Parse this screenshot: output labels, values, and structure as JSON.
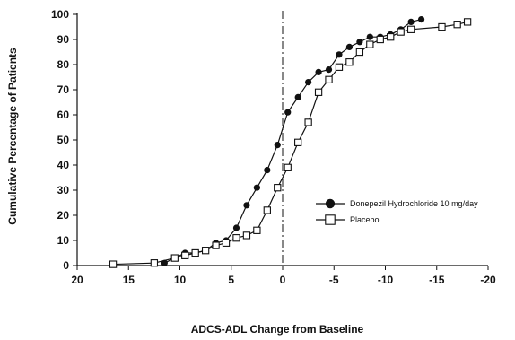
{
  "chart_data": {
    "type": "line",
    "title": "",
    "xlabel": "ADCS-ADL Change from Baseline",
    "ylabel": "Cumulative Percentage of Patients",
    "xlim": [
      20,
      -20
    ],
    "ylim": [
      0,
      100
    ],
    "x_ticks": [
      "20",
      "15",
      "10",
      "5",
      "0",
      "-5",
      "-10",
      "-15",
      "-20"
    ],
    "y_ticks": [
      "0",
      "10",
      "20",
      "30",
      "40",
      "50",
      "60",
      "70",
      "80",
      "90",
      "100"
    ],
    "reference_line": {
      "x": 0,
      "style": "dash-dot"
    },
    "grid": false,
    "legend_position": "right",
    "series": [
      {
        "name": "Donepezil Hydrochloride 10 mg/day",
        "marker": "filled-circle",
        "color": "#111111",
        "points": [
          [
            11.5,
            1
          ],
          [
            10.5,
            3
          ],
          [
            9.5,
            5
          ],
          [
            8.5,
            5
          ],
          [
            7.5,
            6
          ],
          [
            6.5,
            9
          ],
          [
            5.5,
            10
          ],
          [
            4.5,
            15
          ],
          [
            3.5,
            24
          ],
          [
            2.5,
            31
          ],
          [
            1.5,
            38
          ],
          [
            0.5,
            48
          ],
          [
            -0.5,
            61
          ],
          [
            -1.5,
            67
          ],
          [
            -2.5,
            73
          ],
          [
            -3.5,
            77
          ],
          [
            -4.5,
            78
          ],
          [
            -5.5,
            84
          ],
          [
            -6.5,
            87
          ],
          [
            -7.5,
            89
          ],
          [
            -8.5,
            91
          ],
          [
            -9.5,
            91
          ],
          [
            -10.5,
            92
          ],
          [
            -11.5,
            94
          ],
          [
            -12.5,
            97
          ],
          [
            -13.5,
            98
          ]
        ]
      },
      {
        "name": "Placebo",
        "marker": "open-square",
        "color": "#111111",
        "points": [
          [
            16.5,
            0.5
          ],
          [
            12.5,
            1
          ],
          [
            10.5,
            3
          ],
          [
            9.5,
            4
          ],
          [
            8.5,
            5
          ],
          [
            7.5,
            6
          ],
          [
            6.5,
            8
          ],
          [
            5.5,
            9
          ],
          [
            4.5,
            11
          ],
          [
            3.5,
            12
          ],
          [
            2.5,
            14
          ],
          [
            1.5,
            22
          ],
          [
            0.5,
            31
          ],
          [
            -0.5,
            39
          ],
          [
            -1.5,
            49
          ],
          [
            -2.5,
            57
          ],
          [
            -3.5,
            69
          ],
          [
            -4.5,
            74
          ],
          [
            -5.5,
            79
          ],
          [
            -6.5,
            81
          ],
          [
            -7.5,
            85
          ],
          [
            -8.5,
            88
          ],
          [
            -9.5,
            90
          ],
          [
            -10.5,
            91
          ],
          [
            -11.5,
            93
          ],
          [
            -12.5,
            94
          ],
          [
            -15.5,
            95
          ],
          [
            -17.0,
            96
          ],
          [
            -18.0,
            97
          ]
        ]
      }
    ]
  }
}
